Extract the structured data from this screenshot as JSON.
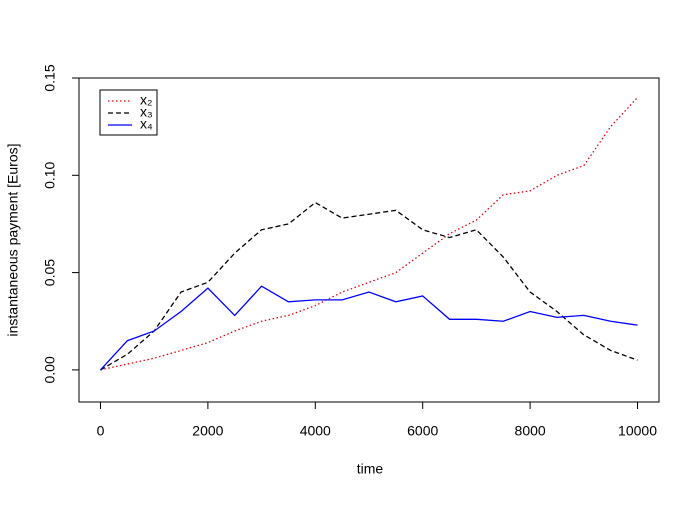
{
  "chart_data": {
    "type": "line",
    "xlabel": "time",
    "ylabel": "instantaneous payment [Euros]",
    "x": [
      0,
      500,
      1000,
      1500,
      2000,
      2500,
      3000,
      3500,
      4000,
      4500,
      5000,
      5500,
      6000,
      6500,
      7000,
      7500,
      8000,
      8500,
      9000,
      9500,
      10000
    ],
    "series": [
      {
        "name": "x₂",
        "color": "#e8000b",
        "dash": "dotted",
        "values": [
          0,
          0.003,
          0.006,
          0.01,
          0.014,
          0.02,
          0.025,
          0.028,
          0.033,
          0.04,
          0.045,
          0.05,
          0.06,
          0.07,
          0.077,
          0.09,
          0.092,
          0.1,
          0.105,
          0.125,
          0.14
        ]
      },
      {
        "name": "x₃",
        "color": "#000000",
        "dash": "dashed",
        "values": [
          0,
          0.008,
          0.02,
          0.04,
          0.045,
          0.06,
          0.072,
          0.075,
          0.086,
          0.078,
          0.08,
          0.082,
          0.072,
          0.068,
          0.072,
          0.058,
          0.04,
          0.03,
          0.018,
          0.01,
          0.005
        ]
      },
      {
        "name": "x₄",
        "color": "#0000ff",
        "dash": "solid",
        "values": [
          0,
          0.015,
          0.02,
          0.03,
          0.042,
          0.028,
          0.043,
          0.035,
          0.036,
          0.036,
          0.04,
          0.035,
          0.038,
          0.026,
          0.026,
          0.025,
          0.03,
          0.027,
          0.028,
          0.025,
          0.023
        ]
      }
    ],
    "xlim": [
      -400,
      10400
    ],
    "ylim": [
      -0.0165,
      0.15
    ],
    "xticks": [
      0,
      2000,
      4000,
      6000,
      8000,
      10000
    ],
    "yticks": [
      {
        "value": 0,
        "label": "0.00"
      },
      {
        "value": 0.05,
        "label": "0.05"
      },
      {
        "value": 0.1,
        "label": "0.10"
      },
      {
        "value": 0.15,
        "label": "0.15"
      }
    ],
    "legend": "top-left"
  }
}
